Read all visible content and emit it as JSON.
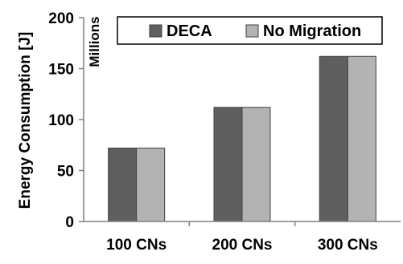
{
  "chart_data": {
    "type": "bar",
    "title": "",
    "xlabel": "",
    "ylabel": "Energy Consumption [J]",
    "y_units_note": "Millions",
    "categories": [
      "100 CNs",
      "200 CNs",
      "300 CNs"
    ],
    "series": [
      {
        "name": "DECA",
        "values": [
          72,
          112,
          162
        ],
        "color": "#5f5f5f"
      },
      {
        "name": "No Migration",
        "values": [
          72,
          112,
          162
        ],
        "color": "#b3b3b3"
      }
    ],
    "ylim": [
      0,
      200
    ],
    "yticks": [
      0,
      50,
      100,
      150,
      200
    ],
    "grid": false,
    "legend_position": "top"
  }
}
